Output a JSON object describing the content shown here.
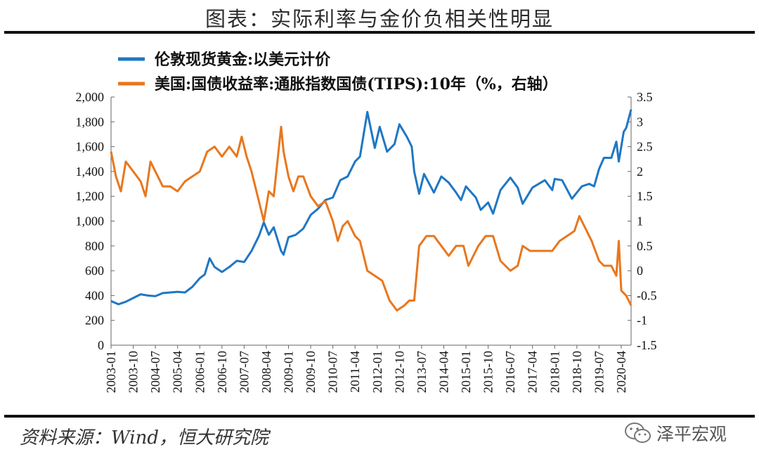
{
  "title": "图表：实际利率与金价负相关性明显",
  "source": "资料来源：Wind，恒大研究院",
  "watermark": "泽平宏观",
  "colors": {
    "gold": "#1f77c4",
    "tips": "#e8771e",
    "axis": "#666666",
    "rule": "#111111"
  },
  "chart_data": {
    "type": "line",
    "legend_position": "top-left",
    "grid": false,
    "x_tick_labels": [
      "2003-01",
      "2003-10",
      "2004-07",
      "2005-04",
      "2006-01",
      "2006-10",
      "2007-07",
      "2008-04",
      "2009-01",
      "2009-10",
      "2010-07",
      "2011-04",
      "2012-01",
      "2012-10",
      "2013-07",
      "2014-04",
      "2015-01",
      "2015-10",
      "2016-07",
      "2017-04",
      "2018-01",
      "2018-10",
      "2019-07",
      "2020-04"
    ],
    "x_range": [
      "2003-01",
      "2020-08"
    ],
    "y_left": {
      "range": [
        0,
        2000
      ],
      "ticks": [
        "0",
        "200",
        "400",
        "600",
        "800",
        "1,000",
        "1,200",
        "1,400",
        "1,600",
        "1,800",
        "2,000"
      ]
    },
    "y_right": {
      "range": [
        -1.5,
        3.5
      ],
      "ticks": [
        "-1.5",
        "-1",
        "-0.5",
        "0",
        "0.5",
        "1",
        "1.5",
        "2",
        "2.5",
        "3",
        "3.5"
      ]
    },
    "series": [
      {
        "name": "伦敦现货黄金:以美元计价",
        "axis": "left",
        "points": [
          [
            "2003-01",
            355
          ],
          [
            "2003-04",
            330
          ],
          [
            "2003-07",
            350
          ],
          [
            "2003-10",
            380
          ],
          [
            "2004-01",
            410
          ],
          [
            "2004-04",
            400
          ],
          [
            "2004-07",
            395
          ],
          [
            "2004-10",
            420
          ],
          [
            "2005-01",
            425
          ],
          [
            "2005-04",
            430
          ],
          [
            "2005-07",
            425
          ],
          [
            "2005-10",
            470
          ],
          [
            "2006-01",
            540
          ],
          [
            "2006-03",
            570
          ],
          [
            "2006-05",
            700
          ],
          [
            "2006-07",
            630
          ],
          [
            "2006-10",
            590
          ],
          [
            "2007-01",
            630
          ],
          [
            "2007-04",
            680
          ],
          [
            "2007-07",
            670
          ],
          [
            "2007-10",
            760
          ],
          [
            "2008-01",
            880
          ],
          [
            "2008-03",
            990
          ],
          [
            "2008-05",
            890
          ],
          [
            "2008-07",
            950
          ],
          [
            "2008-10",
            760
          ],
          [
            "2008-11",
            730
          ],
          [
            "2009-01",
            870
          ],
          [
            "2009-04",
            890
          ],
          [
            "2009-07",
            940
          ],
          [
            "2009-10",
            1050
          ],
          [
            "2010-01",
            1100
          ],
          [
            "2010-04",
            1170
          ],
          [
            "2010-07",
            1190
          ],
          [
            "2010-10",
            1330
          ],
          [
            "2011-01",
            1360
          ],
          [
            "2011-04",
            1480
          ],
          [
            "2011-06",
            1520
          ],
          [
            "2011-09",
            1880
          ],
          [
            "2011-12",
            1590
          ],
          [
            "2012-02",
            1760
          ],
          [
            "2012-05",
            1560
          ],
          [
            "2012-08",
            1620
          ],
          [
            "2012-10",
            1780
          ],
          [
            "2013-01",
            1680
          ],
          [
            "2013-03",
            1600
          ],
          [
            "2013-04",
            1400
          ],
          [
            "2013-06",
            1220
          ],
          [
            "2013-08",
            1380
          ],
          [
            "2013-12",
            1230
          ],
          [
            "2014-03",
            1360
          ],
          [
            "2014-06",
            1310
          ],
          [
            "2014-09",
            1230
          ],
          [
            "2014-11",
            1170
          ],
          [
            "2015-01",
            1280
          ],
          [
            "2015-05",
            1190
          ],
          [
            "2015-07",
            1090
          ],
          [
            "2015-10",
            1150
          ],
          [
            "2015-12",
            1060
          ],
          [
            "2016-03",
            1250
          ],
          [
            "2016-07",
            1350
          ],
          [
            "2016-10",
            1270
          ],
          [
            "2016-12",
            1140
          ],
          [
            "2017-04",
            1270
          ],
          [
            "2017-09",
            1330
          ],
          [
            "2017-12",
            1250
          ],
          [
            "2018-01",
            1340
          ],
          [
            "2018-04",
            1330
          ],
          [
            "2018-08",
            1180
          ],
          [
            "2018-12",
            1280
          ],
          [
            "2019-03",
            1300
          ],
          [
            "2019-05",
            1280
          ],
          [
            "2019-07",
            1420
          ],
          [
            "2019-09",
            1510
          ],
          [
            "2019-12",
            1510
          ],
          [
            "2020-02",
            1640
          ],
          [
            "2020-03",
            1480
          ],
          [
            "2020-05",
            1720
          ],
          [
            "2020-06",
            1750
          ],
          [
            "2020-08",
            1900
          ]
        ]
      },
      {
        "name": "美国:国债收益率:通胀指数国债(TIPS):10年（%，右轴）",
        "axis": "right",
        "points": [
          [
            "2003-01",
            2.4
          ],
          [
            "2003-03",
            1.9
          ],
          [
            "2003-05",
            1.6
          ],
          [
            "2003-07",
            2.2
          ],
          [
            "2003-10",
            2.0
          ],
          [
            "2004-01",
            1.8
          ],
          [
            "2004-03",
            1.5
          ],
          [
            "2004-05",
            2.2
          ],
          [
            "2004-07",
            2.0
          ],
          [
            "2004-10",
            1.7
          ],
          [
            "2005-01",
            1.7
          ],
          [
            "2005-04",
            1.6
          ],
          [
            "2005-07",
            1.8
          ],
          [
            "2005-10",
            1.9
          ],
          [
            "2006-01",
            2.0
          ],
          [
            "2006-04",
            2.4
          ],
          [
            "2006-07",
            2.5
          ],
          [
            "2006-10",
            2.3
          ],
          [
            "2007-01",
            2.5
          ],
          [
            "2007-04",
            2.3
          ],
          [
            "2007-06",
            2.7
          ],
          [
            "2007-08",
            2.3
          ],
          [
            "2007-10",
            2.0
          ],
          [
            "2008-01",
            1.4
          ],
          [
            "2008-03",
            1.0
          ],
          [
            "2008-05",
            1.6
          ],
          [
            "2008-07",
            1.5
          ],
          [
            "2008-10",
            2.9
          ],
          [
            "2008-11",
            2.4
          ],
          [
            "2009-01",
            1.9
          ],
          [
            "2009-03",
            1.6
          ],
          [
            "2009-05",
            1.9
          ],
          [
            "2009-07",
            1.9
          ],
          [
            "2009-10",
            1.5
          ],
          [
            "2010-01",
            1.3
          ],
          [
            "2010-04",
            1.4
          ],
          [
            "2010-07",
            1.0
          ],
          [
            "2010-09",
            0.6
          ],
          [
            "2010-11",
            0.9
          ],
          [
            "2011-01",
            1.0
          ],
          [
            "2011-04",
            0.7
          ],
          [
            "2011-06",
            0.6
          ],
          [
            "2011-09",
            0.0
          ],
          [
            "2011-12",
            -0.1
          ],
          [
            "2012-03",
            -0.2
          ],
          [
            "2012-06",
            -0.6
          ],
          [
            "2012-09",
            -0.8
          ],
          [
            "2012-12",
            -0.7
          ],
          [
            "2013-02",
            -0.6
          ],
          [
            "2013-04",
            -0.6
          ],
          [
            "2013-06",
            0.5
          ],
          [
            "2013-09",
            0.7
          ],
          [
            "2013-12",
            0.7
          ],
          [
            "2014-03",
            0.5
          ],
          [
            "2014-06",
            0.3
          ],
          [
            "2014-09",
            0.5
          ],
          [
            "2014-12",
            0.5
          ],
          [
            "2015-02",
            0.1
          ],
          [
            "2015-06",
            0.5
          ],
          [
            "2015-09",
            0.7
          ],
          [
            "2015-12",
            0.7
          ],
          [
            "2016-03",
            0.2
          ],
          [
            "2016-07",
            0.0
          ],
          [
            "2016-10",
            0.1
          ],
          [
            "2016-12",
            0.5
          ],
          [
            "2017-03",
            0.4
          ],
          [
            "2017-06",
            0.4
          ],
          [
            "2017-09",
            0.4
          ],
          [
            "2017-12",
            0.4
          ],
          [
            "2018-03",
            0.6
          ],
          [
            "2018-06",
            0.7
          ],
          [
            "2018-09",
            0.8
          ],
          [
            "2018-11",
            1.1
          ],
          [
            "2019-01",
            0.9
          ],
          [
            "2019-04",
            0.6
          ],
          [
            "2019-07",
            0.2
          ],
          [
            "2019-09",
            0.1
          ],
          [
            "2019-12",
            0.1
          ],
          [
            "2020-02",
            -0.1
          ],
          [
            "2020-03",
            0.6
          ],
          [
            "2020-04",
            -0.4
          ],
          [
            "2020-06",
            -0.5
          ],
          [
            "2020-08",
            -0.7
          ]
        ]
      }
    ]
  }
}
